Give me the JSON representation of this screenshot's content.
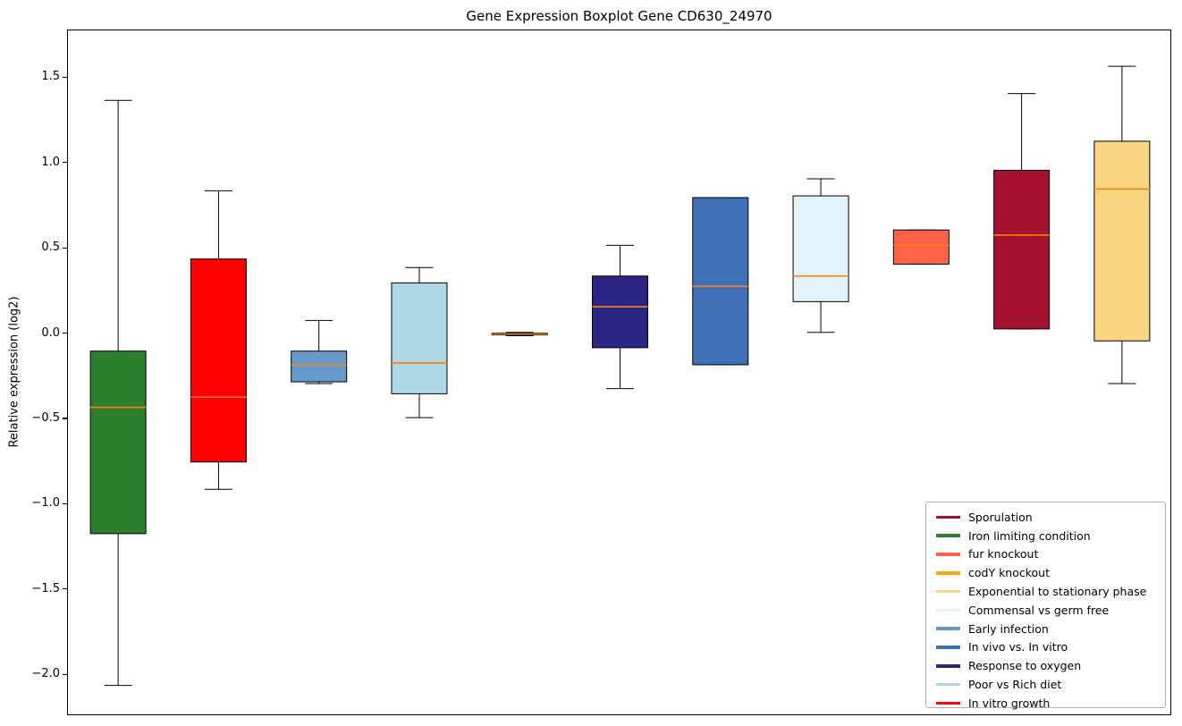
{
  "chart_data": {
    "type": "boxplot",
    "title": "Gene Expression Boxplot Gene CD630_24970",
    "ylabel": "Relative expression (log2)",
    "ylim": [
      -2.24,
      1.78
    ],
    "grid": false,
    "legend_position": "lower right",
    "median_color": "#ff7f0e",
    "box_edge_color": "#000000",
    "yticks": [
      {
        "label": "1.5",
        "value": 1.5
      },
      {
        "label": "1.0",
        "value": 1.0
      },
      {
        "label": "0.5",
        "value": 0.5
      },
      {
        "label": "0.0",
        "value": 0.0
      },
      {
        "label": "−0.5",
        "value": -0.5
      },
      {
        "label": "−1.0",
        "value": -1.0
      },
      {
        "label": "−1.5",
        "value": -1.5
      },
      {
        "label": "−2.0",
        "value": -2.0
      }
    ],
    "series": [
      {
        "name": "Iron limiting condition",
        "color": "#2a7e2e",
        "whisker_low": -2.06,
        "q1": -1.17,
        "median": -0.43,
        "q3": -0.1,
        "whisker_high": 1.37
      },
      {
        "name": "In vitro growth",
        "color": "#ff0000",
        "whisker_low": -0.91,
        "q1": -0.75,
        "median": -0.37,
        "q3": 0.44,
        "whisker_high": 0.84
      },
      {
        "name": "Early infection",
        "color": "#6699cc",
        "whisker_low": -0.29,
        "q1": -0.28,
        "median": -0.18,
        "q3": -0.1,
        "whisker_high": 0.08
      },
      {
        "name": "Poor vs Rich diet",
        "color": "#add8e6",
        "whisker_low": -0.49,
        "q1": -0.35,
        "median": -0.17,
        "q3": 0.3,
        "whisker_high": 0.39
      },
      {
        "name": "codY knockout",
        "color": "#ffa500",
        "whisker_low": -0.01,
        "q1": -0.005,
        "median": 0.0,
        "q3": 0.005,
        "whisker_high": 0.01
      },
      {
        "name": "Response to oxygen",
        "color": "#2a2483",
        "whisker_low": -0.32,
        "q1": -0.08,
        "median": 0.16,
        "q3": 0.34,
        "whisker_high": 0.52
      },
      {
        "name": "In vivo vs. In vitro",
        "color": "#3f6fb5",
        "whisker_low": -0.18,
        "q1": -0.18,
        "median": 0.28,
        "q3": 0.8,
        "whisker_high": 0.8
      },
      {
        "name": "Commensal vs germ free",
        "color": "#e3f1f9",
        "whisker_low": 0.01,
        "q1": 0.19,
        "median": 0.34,
        "q3": 0.81,
        "whisker_high": 0.91
      },
      {
        "name": "fur knockout",
        "color": "#ff6347",
        "whisker_low": 0.41,
        "q1": 0.41,
        "median": 0.52,
        "q3": 0.61,
        "whisker_high": 0.61
      },
      {
        "name": "Sporulation",
        "color": "#a51230",
        "whisker_low": 0.03,
        "q1": 0.03,
        "median": 0.58,
        "q3": 0.96,
        "whisker_high": 1.41
      },
      {
        "name": "Exponential to stationary phase",
        "color": "#fbd682",
        "whisker_low": -0.29,
        "q1": -0.04,
        "median": 0.85,
        "q3": 1.13,
        "whisker_high": 1.57
      }
    ],
    "legend": [
      {
        "label": "Sporulation",
        "color": "#a51230"
      },
      {
        "label": "Iron limiting condition",
        "color": "#2a7e2e"
      },
      {
        "label": "fur knockout",
        "color": "#ff6347"
      },
      {
        "label": "codY knockout",
        "color": "#ffa500"
      },
      {
        "label": "Exponential to stationary phase",
        "color": "#fbd682"
      },
      {
        "label": "Commensal vs germ free",
        "color": "#e3f1f9"
      },
      {
        "label": "Early infection",
        "color": "#6699cc"
      },
      {
        "label": "In vivo vs. In vitro",
        "color": "#3f6fb5"
      },
      {
        "label": "Response to oxygen",
        "color": "#2a2483"
      },
      {
        "label": "Poor vs Rich diet",
        "color": "#add8e6"
      },
      {
        "label": "In vitro growth",
        "color": "#ff0000"
      }
    ]
  }
}
